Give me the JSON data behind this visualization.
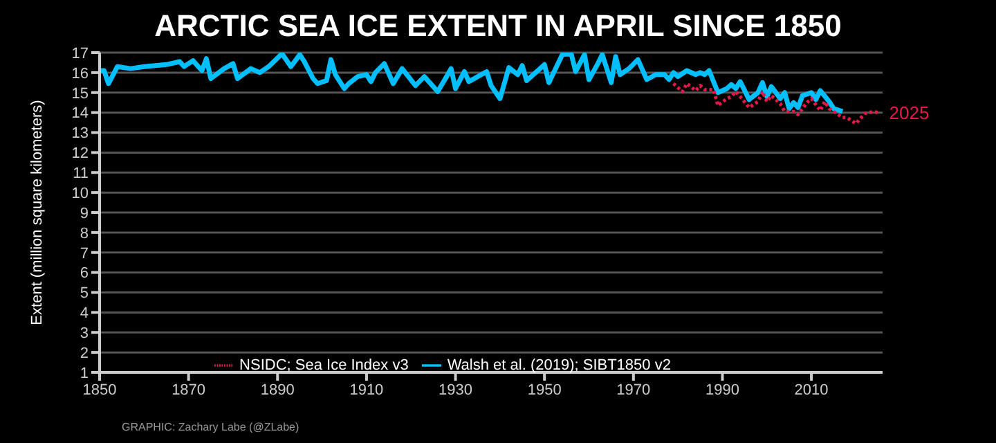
{
  "chart_data": {
    "type": "line",
    "title": "ARCTIC SEA ICE EXTENT IN APRIL SINCE 1850",
    "ylabel": "Extent (million square kilometers)",
    "xlim": [
      1850,
      2026
    ],
    "xticks": [
      1850,
      1870,
      1890,
      1910,
      1930,
      1950,
      1970,
      1990,
      2010
    ],
    "ylim": [
      1,
      17
    ],
    "yticks": [
      1,
      2,
      3,
      4,
      5,
      6,
      7,
      8,
      9,
      10,
      11,
      12,
      13,
      14,
      15,
      16,
      17
    ],
    "grid": "y",
    "legend": "bottom",
    "annotations": [
      {
        "text": "2025",
        "x": 2025,
        "y": 14.0
      },
      "GRAPHIC: Zachary Labe (@ZLabe)"
    ],
    "series": [
      {
        "name": "Walsh et al. (2019); SIBT1850 v2",
        "color": "#00bfff",
        "line_style": "solid",
        "x": [
          1850,
          1851,
          1852,
          1854,
          1857,
          1860,
          1865,
          1868,
          1869,
          1871,
          1873,
          1874,
          1875,
          1878,
          1880,
          1881,
          1884,
          1886,
          1888,
          1891,
          1893,
          1895,
          1896,
          1898,
          1899,
          1901,
          1902,
          1903,
          1905,
          1906,
          1908,
          1910,
          1911,
          1912,
          1914,
          1916,
          1918,
          1921,
          1923,
          1926,
          1928,
          1929,
          1930,
          1932,
          1933,
          1937,
          1938,
          1940,
          1942,
          1944,
          1945,
          1946,
          1950,
          1951,
          1954,
          1956,
          1957,
          1959,
          1960,
          1962,
          1963,
          1965,
          1966,
          1967,
          1969,
          1971,
          1973,
          1975,
          1977,
          1978,
          1979,
          1980,
          1982,
          1984,
          1985,
          1986,
          1987,
          1989,
          1991,
          1992,
          1993,
          1994,
          1996,
          1998,
          1999,
          2000,
          2001,
          2003,
          2004,
          2005,
          2006,
          2007,
          2008,
          2010,
          2011,
          2012,
          2014,
          2015,
          2017
        ],
        "values": [
          16.1,
          16.1,
          15.45,
          16.3,
          16.2,
          16.3,
          16.4,
          16.55,
          16.3,
          16.6,
          16.1,
          16.7,
          15.7,
          16.2,
          16.45,
          15.7,
          16.2,
          16.0,
          16.3,
          16.95,
          16.3,
          16.9,
          16.55,
          15.7,
          15.45,
          15.6,
          16.65,
          15.9,
          15.2,
          15.45,
          15.8,
          15.9,
          15.55,
          16.0,
          16.45,
          15.45,
          16.2,
          15.35,
          15.8,
          15.05,
          15.8,
          16.2,
          15.2,
          16.05,
          15.55,
          16.05,
          15.35,
          14.7,
          16.25,
          15.9,
          16.35,
          15.6,
          16.4,
          15.5,
          16.9,
          16.95,
          16.05,
          16.9,
          15.65,
          16.45,
          16.9,
          15.5,
          16.8,
          15.9,
          16.2,
          16.65,
          15.65,
          15.9,
          15.9,
          15.65,
          16.0,
          15.8,
          16.1,
          15.9,
          16.0,
          15.9,
          16.1,
          15.0,
          15.2,
          15.4,
          15.2,
          15.55,
          14.65,
          15.0,
          15.5,
          14.8,
          15.3,
          14.7,
          15.0,
          14.2,
          14.5,
          14.25,
          14.85,
          15.0,
          14.65,
          15.1,
          14.55,
          14.2,
          14.05
        ]
      },
      {
        "name": "NSIDC; Sea Ice Index v3",
        "color": "#e8174a",
        "line_style": "dotted",
        "x": [
          1979,
          1981,
          1982,
          1984,
          1985,
          1986,
          1988,
          1989,
          1991,
          1992,
          1993,
          1994,
          1996,
          1998,
          1999,
          2000,
          2001,
          2003,
          2004,
          2006,
          2007,
          2009,
          2010,
          2012,
          2013,
          2014,
          2017,
          2018,
          2020,
          2022,
          2024,
          2025
        ],
        "values": [
          15.45,
          15.05,
          15.45,
          15.1,
          15.35,
          15.15,
          15.15,
          14.35,
          14.7,
          14.8,
          15.05,
          14.8,
          14.25,
          14.55,
          15.05,
          14.55,
          14.85,
          14.45,
          14.05,
          14.05,
          13.9,
          14.5,
          14.7,
          14.1,
          14.55,
          14.2,
          13.75,
          13.75,
          13.45,
          13.95,
          14.05,
          14.0
        ]
      }
    ]
  }
}
